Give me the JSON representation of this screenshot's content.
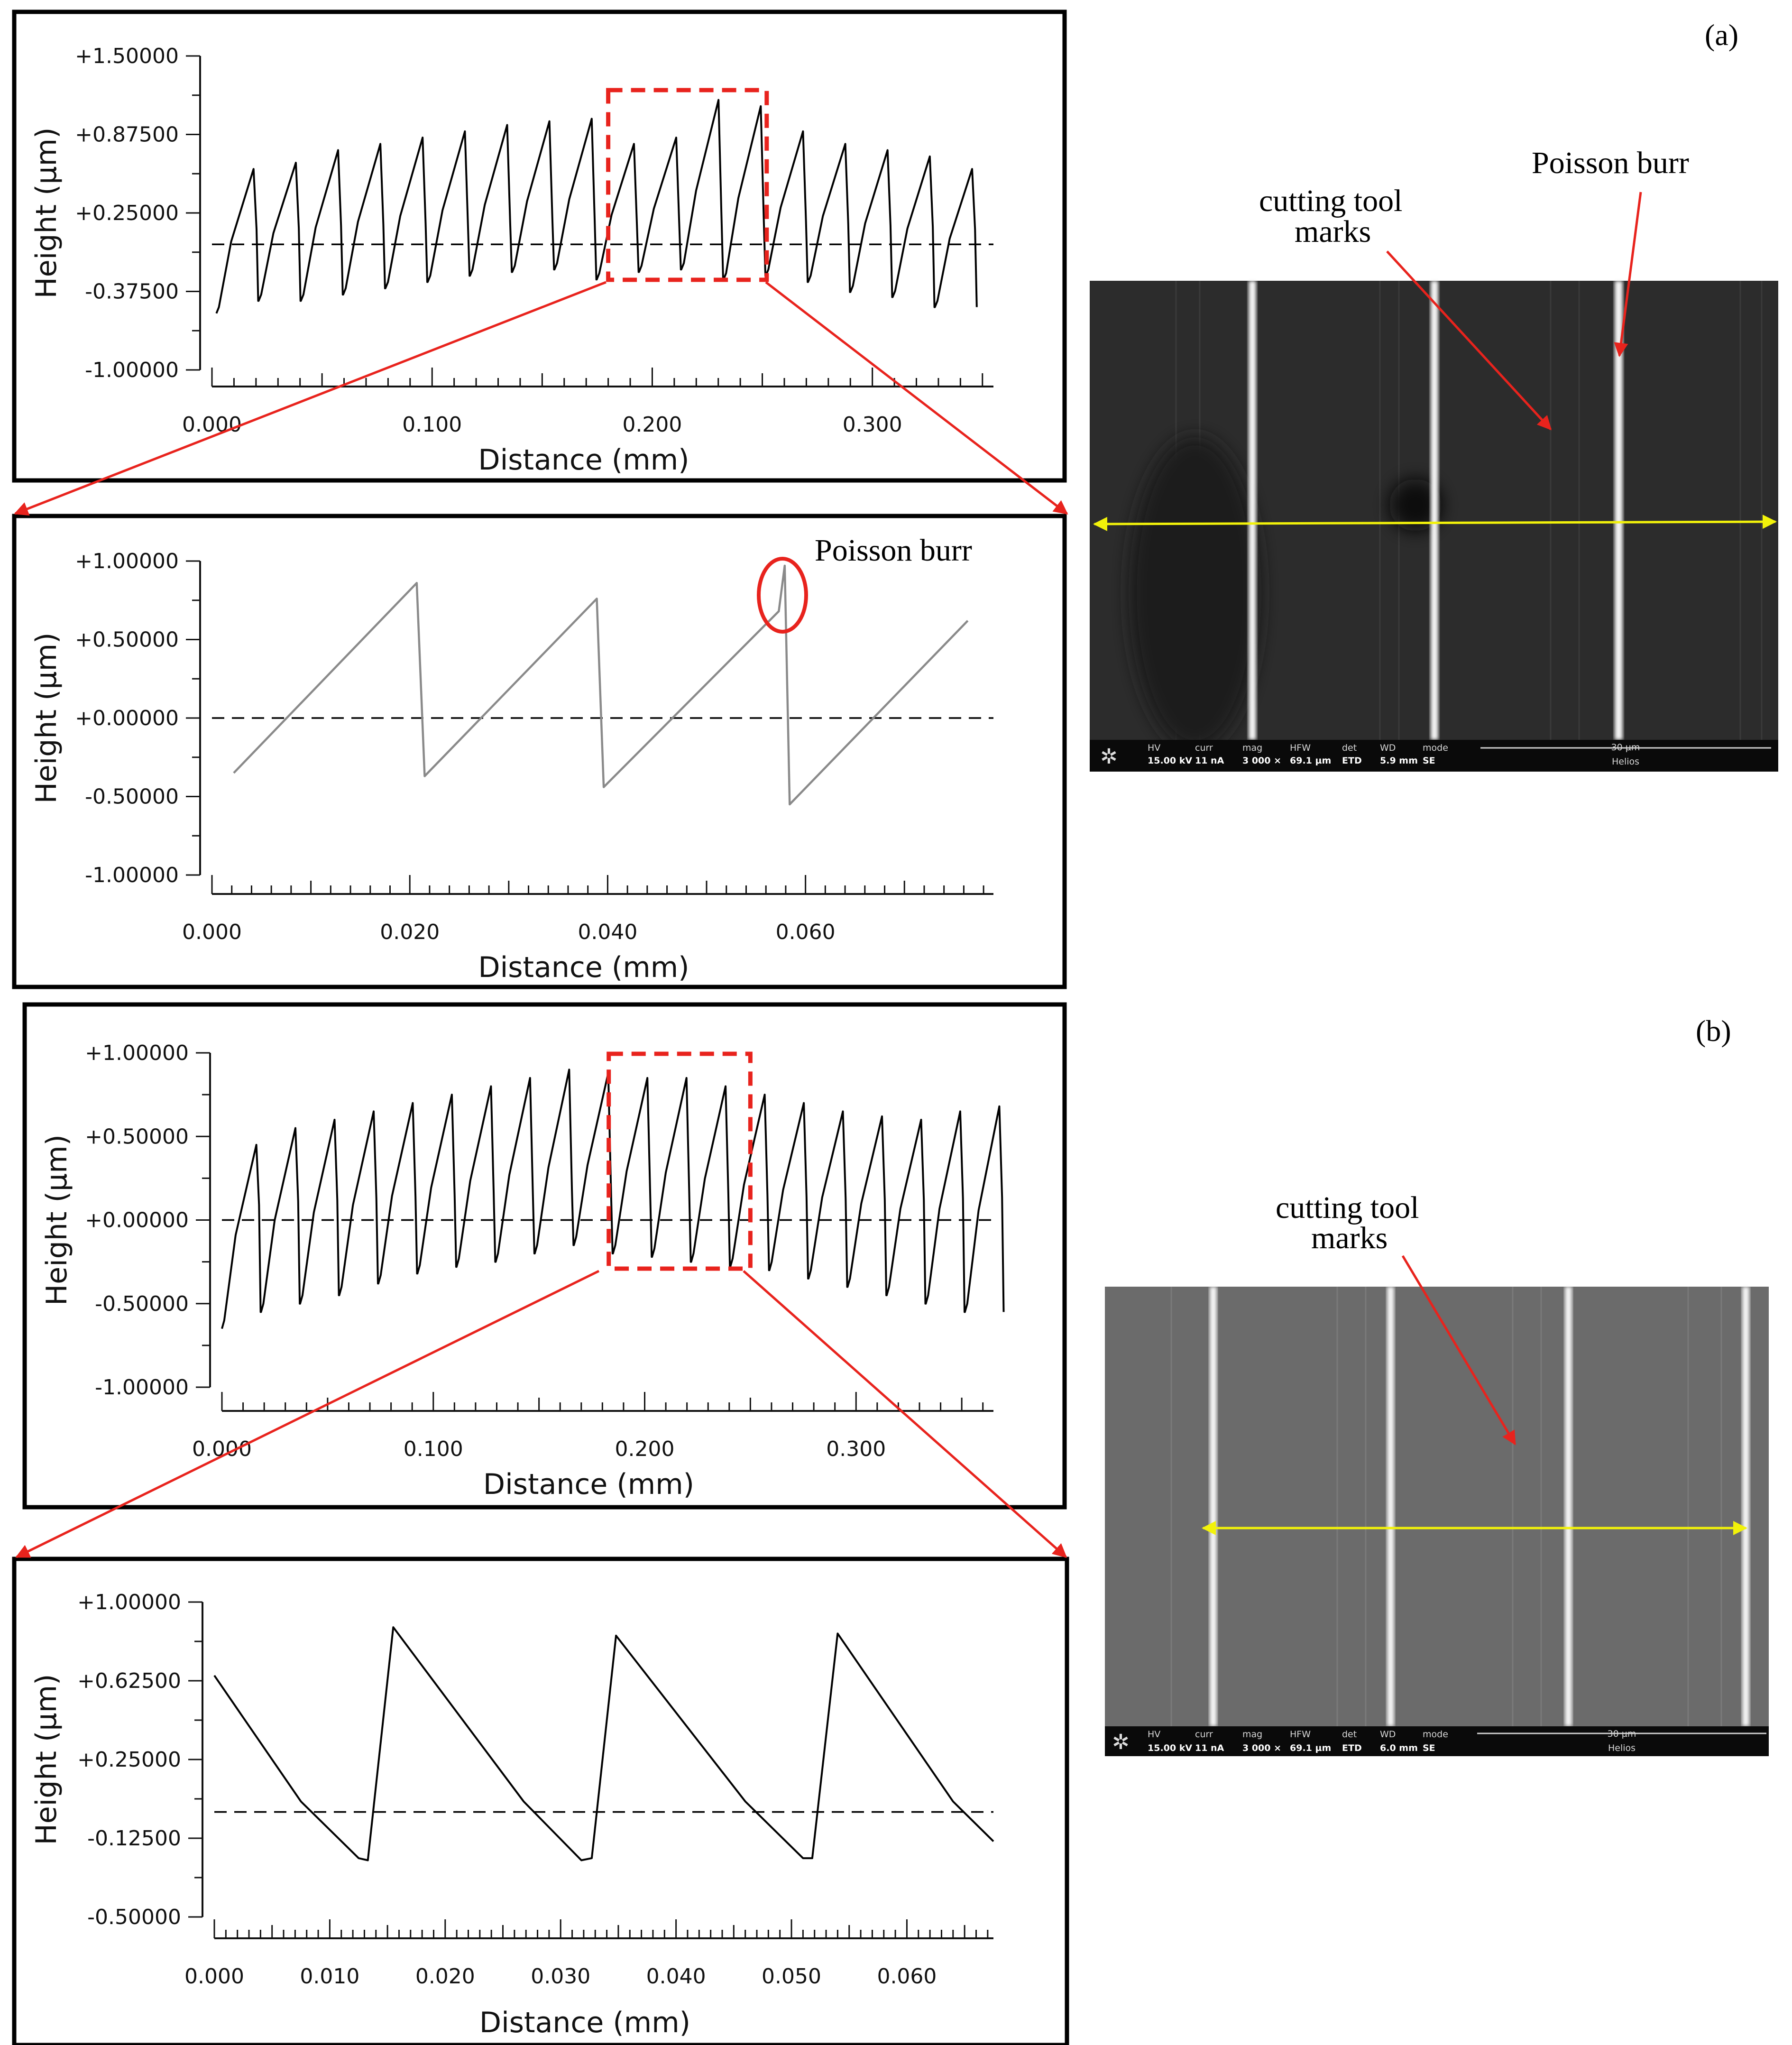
{
  "figure": {
    "panel_a_label": "(a)",
    "panel_b_label": "(b)"
  },
  "annotations": {
    "poisson_burr_sem": "Poisson burr",
    "cutting_marks_a_line1": "cutting tool",
    "cutting_marks_a_line2": "marks",
    "poisson_burr_profile": "Poisson burr",
    "cutting_marks_b_line1": "cutting tool",
    "cutting_marks_b_line2": "marks"
  },
  "sem_a": {
    "bar_labels": [
      "HV",
      "curr",
      "mag",
      "HFW",
      "det",
      "WD",
      "mode"
    ],
    "bar_values": [
      "15.00 kV",
      "11 nA",
      "3 000 ×",
      "69.1 µm",
      "ETD",
      "5.9 mm",
      "SE"
    ],
    "scale": "30 µm",
    "brand": "Helios",
    "colors": {
      "background": "#2d2d2d",
      "marker": "#f2f20a"
    }
  },
  "sem_b": {
    "bar_labels": [
      "HV",
      "curr",
      "mag",
      "HFW",
      "det",
      "WD",
      "mode"
    ],
    "bar_values": [
      "15.00 kV",
      "11 nA",
      "3 000 ×",
      "69.1 µm",
      "ETD",
      "6.0 mm",
      "SE"
    ],
    "scale": "30 µm",
    "brand": "Helios",
    "colors": {
      "background": "#6a6a6a",
      "marker": "#f2f20a"
    }
  },
  "chart_data": [
    {
      "type": "line",
      "id": "a_overview",
      "xlabel": "Distance (mm)",
      "ylabel": "Height (µm)",
      "xlim": [
        0,
        0.355
      ],
      "ylim": [
        -1.0,
        1.5
      ],
      "y_ticks": [
        "+1.50000",
        "+0.87500",
        "+0.25000",
        "-0.37500",
        "-1.00000"
      ],
      "x_ticks": [
        "0.000",
        "0.100",
        "0.200",
        "0.300"
      ],
      "x_tick_values": [
        0,
        0.1,
        0.2,
        0.3
      ],
      "mean_line": 0.0,
      "profile": {
        "start": 0.002,
        "period": 0.0192,
        "cycles": 18,
        "lows": [
          -0.55,
          -0.45,
          -0.45,
          -0.4,
          -0.35,
          -0.3,
          -0.25,
          -0.22,
          -0.2,
          -0.28,
          -0.22,
          -0.2,
          -0.28,
          -0.25,
          -0.3,
          -0.38,
          -0.42,
          -0.5
        ],
        "peaks": [
          0.6,
          0.65,
          0.75,
          0.8,
          0.85,
          0.9,
          0.95,
          0.98,
          1.0,
          0.8,
          0.85,
          1.15,
          1.1,
          0.9,
          0.8,
          0.75,
          0.7,
          0.6
        ]
      },
      "zoom_window": [
        0.18,
        0.252
      ]
    },
    {
      "type": "line",
      "id": "a_zoom",
      "xlabel": "Distance (mm)",
      "ylabel": "Height (µm)",
      "xlim": [
        0,
        0.079
      ],
      "ylim": [
        -1.0,
        1.0
      ],
      "y_ticks": [
        "+1.00000",
        "+0.50000",
        "+0.00000",
        "-0.50000",
        "-1.00000"
      ],
      "x_ticks": [
        "0.000",
        "0.020",
        "0.040",
        "0.060"
      ],
      "x_tick_values": [
        0,
        0.02,
        0.04,
        0.06
      ],
      "mean_line": 0.0,
      "points": [
        [
          0.0022,
          -0.35
        ],
        [
          0.0207,
          0.86
        ],
        [
          0.0215,
          -0.37
        ],
        [
          0.0389,
          0.76
        ],
        [
          0.0396,
          -0.44
        ],
        [
          0.0573,
          0.68
        ],
        [
          0.0579,
          0.97
        ],
        [
          0.0584,
          -0.55
        ],
        [
          0.0764,
          0.62
        ]
      ]
    },
    {
      "type": "line",
      "id": "b_overview",
      "xlabel": "Distance (mm)",
      "ylabel": "Height (µm)",
      "xlim": [
        0,
        0.365
      ],
      "ylim": [
        -1.0,
        1.0
      ],
      "y_ticks": [
        "+1.00000",
        "+0.50000",
        "+0.00000",
        "-0.50000",
        "-1.00000"
      ],
      "x_ticks": [
        "0.000",
        "0.100",
        "0.200",
        "0.300"
      ],
      "x_tick_values": [
        0,
        0.1,
        0.2,
        0.3
      ],
      "mean_line": 0.0,
      "profile": {
        "start": 0.0,
        "period": 0.0185,
        "cycles": 20,
        "lows": [
          -0.65,
          -0.55,
          -0.5,
          -0.45,
          -0.38,
          -0.32,
          -0.28,
          -0.25,
          -0.2,
          -0.15,
          -0.2,
          -0.22,
          -0.25,
          -0.28,
          -0.3,
          -0.35,
          -0.4,
          -0.45,
          -0.5,
          -0.55
        ],
        "peaks": [
          0.45,
          0.55,
          0.6,
          0.65,
          0.7,
          0.75,
          0.8,
          0.85,
          0.9,
          0.88,
          0.85,
          0.85,
          0.8,
          0.75,
          0.7,
          0.65,
          0.62,
          0.6,
          0.65,
          0.68
        ]
      },
      "zoom_window": [
        0.183,
        0.25
      ]
    },
    {
      "type": "line",
      "id": "b_zoom",
      "xlabel": "Distance (mm)",
      "ylabel": "Height (µm)",
      "xlim": [
        0,
        0.0675
      ],
      "ylim": [
        -0.5,
        1.0
      ],
      "y_ticks": [
        "+1.00000",
        "+0.62500",
        "+0.25000",
        "-0.12500",
        "-0.50000"
      ],
      "x_ticks": [
        "0.000",
        "0.010",
        "0.020",
        "0.030",
        "0.040",
        "0.050",
        "0.060"
      ],
      "x_tick_values": [
        0,
        0.01,
        0.02,
        0.03,
        0.04,
        0.05,
        0.06
      ],
      "mean_line": 0.0,
      "points": [
        [
          0.0,
          0.65
        ],
        [
          0.0075,
          0.05
        ],
        [
          0.0125,
          -0.22
        ],
        [
          0.0133,
          -0.23
        ],
        [
          0.0155,
          0.88
        ],
        [
          0.0268,
          0.05
        ],
        [
          0.0318,
          -0.23
        ],
        [
          0.0327,
          -0.22
        ],
        [
          0.0348,
          0.84
        ],
        [
          0.046,
          0.05
        ],
        [
          0.051,
          -0.22
        ],
        [
          0.0518,
          -0.22
        ],
        [
          0.054,
          0.85
        ],
        [
          0.064,
          0.05
        ],
        [
          0.0675,
          -0.14
        ]
      ]
    }
  ]
}
